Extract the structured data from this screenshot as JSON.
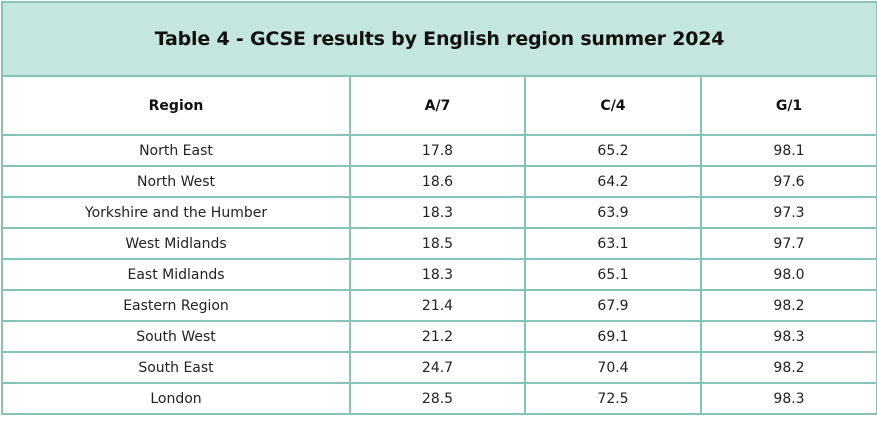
{
  "title": "Table 4 - GCSE results by English region summer 2024",
  "headers": [
    "Region",
    "A/7",
    "C/4",
    "G/1"
  ],
  "rows": [
    [
      "North East",
      "17.8",
      "65.2",
      "98.1"
    ],
    [
      "North West",
      "18.6",
      "64.2",
      "97.6"
    ],
    [
      "Yorkshire and the Humber",
      "18.3",
      "63.9",
      "97.3"
    ],
    [
      "West Midlands",
      "18.5",
      "63.1",
      "97.7"
    ],
    [
      "East Midlands",
      "18.3",
      "65.1",
      "98.0"
    ],
    [
      "Eastern Region",
      "21.4",
      "67.9",
      "98.2"
    ],
    [
      "South West",
      "21.2",
      "69.1",
      "98.3"
    ],
    [
      "South East",
      "24.7",
      "70.4",
      "98.2"
    ],
    [
      "London",
      "28.5",
      "72.5",
      "98.3"
    ]
  ],
  "colors": {
    "border": "#86c3b8",
    "title_background": "#c5e5df"
  }
}
